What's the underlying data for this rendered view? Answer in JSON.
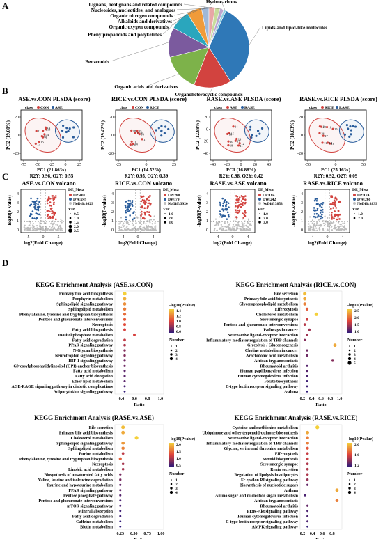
{
  "panels": {
    "A": "A",
    "B": "B",
    "C": "C",
    "D": "D"
  },
  "pie": {
    "type": "pie",
    "slices": [
      {
        "label": "Lipids and lipid-like molecules",
        "value": 34,
        "color": "#2f78b7"
      },
      {
        "label": "Organoheterocyclic compounds",
        "value": 15,
        "color": "#d2433f"
      },
      {
        "label": "Organic acids and derivatives",
        "value": 15,
        "color": "#7db24a"
      },
      {
        "label": "Benzenoids",
        "value": 12,
        "color": "#7b5a9e"
      },
      {
        "label": "Phenylpropanoids and polyketides",
        "value": 8,
        "color": "#2aa6bd"
      },
      {
        "label": "Organic oxygen compounds",
        "value": 6,
        "color": "#f09b3a"
      },
      {
        "label": "Alkaloids and derivatives",
        "value": 3,
        "color": "#9fb8d8"
      },
      {
        "label": "Organic nitrogen compounds",
        "value": 2.5,
        "color": "#e8a6a6"
      },
      {
        "label": "Nucleosides, nucleotides, and analogues",
        "value": 2,
        "color": "#c7dc9c"
      },
      {
        "label": "Lignans, neolignans and related compounds",
        "value": 1.5,
        "color": "#bba6d0"
      },
      {
        "label": "Hydrocarbons",
        "value": 1,
        "color": "#8fd0e0"
      }
    ]
  },
  "plsda": [
    {
      "title": "ASE.vs.CON PLSDA (score)",
      "xlabel": "PC1 (21.86%)",
      "ylabel": "PC2 (19.60%)",
      "footer": "R2Y: 0.96, Q2Y: 0.55",
      "legend": [
        "class",
        "CON",
        "ASE"
      ],
      "xticks": [
        "-75",
        "-50",
        "-25",
        "0",
        "25"
      ],
      "yticks": [
        "20",
        "0",
        "-20"
      ]
    },
    {
      "title": "RICE.vs.CON PLSDA (score)",
      "xlabel": "PC1 (14.52%)",
      "ylabel": "PC2 (19.42%)",
      "footer": "R2Y: 0.95, Q2Y: 0.39",
      "legend": [
        "class",
        "CON",
        "RICE"
      ],
      "xticks": [
        "-25",
        "0",
        "25"
      ],
      "yticks": [
        "20",
        "0",
        "-20"
      ]
    },
    {
      "title": "RASE.vs.ASE PLSDA (score)",
      "xlabel": "PC1 (16.88%)",
      "ylabel": "PC2 (12.98%)",
      "footer": "R2Y: 0.98, Q2Y: 0.42",
      "legend": [
        "class",
        "ASE",
        "RASE"
      ],
      "xticks": [
        "-40",
        "-20",
        "0",
        "20",
        "40"
      ],
      "yticks": [
        "20",
        "0",
        "-20",
        "-40"
      ]
    },
    {
      "title": "RASE.vs.RICE PLSDA (score)",
      "xlabel": "PC1 (25.16%)",
      "ylabel": "PC2 (18.63%)",
      "footer": "R2Y: 0.92, Q2Y: 0.09",
      "legend": [
        "class",
        "RICE",
        "RASE"
      ],
      "xticks": [
        "-50",
        "0",
        "50"
      ],
      "yticks": [
        "20",
        "0",
        "-20"
      ]
    }
  ],
  "volcano": [
    {
      "title": "ASE.vs.CON volcano",
      "legend_title": "DE_Meta",
      "up": "UP:401",
      "down": "DW:249",
      "nodiff": "NoDiff:3629",
      "vip": [
        "0.5",
        "1.0",
        "1.5",
        "2.0",
        "2.5"
      ],
      "xticks": [
        "-5",
        "0",
        "5"
      ],
      "yticks": [
        "0",
        "1",
        "2",
        "3",
        "4"
      ]
    },
    {
      "title": "RICE.vs.CON volcano",
      "legend_title": "DE_Meta",
      "up": "UP:280",
      "down": "DW:79",
      "nodiff": "NoDiff:3920",
      "vip": [
        "1.0",
        "2.0",
        "3.0"
      ],
      "xticks": [
        "-4",
        "0",
        "4"
      ],
      "yticks": [
        "0",
        "1",
        "2",
        "3",
        "4"
      ]
    },
    {
      "title": "RASE.vs.ASE volcano",
      "legend_title": "DE_Meta",
      "up": "UP:184",
      "down": "DW:242",
      "nodiff": "NoDiff:3853",
      "vip": [
        "1.0",
        "2.0",
        "3.0"
      ],
      "xticks": [
        "-4",
        "0",
        "4"
      ],
      "yticks": [
        "0",
        "1",
        "2",
        "3",
        "4"
      ]
    },
    {
      "title": "RASE.vs.RICE volcano",
      "legend_title": "DE_Meta",
      "up": "UP:174",
      "down": "DW:266",
      "nodiff": "NoDiff:3839",
      "vip": [
        "1.0",
        "2.0"
      ],
      "xticks": [
        "-4",
        "0",
        "4"
      ],
      "yticks": [
        "0",
        "1",
        "2",
        "3",
        "4"
      ]
    }
  ],
  "volcano_axes": {
    "xlabel": "log2(Fold Change)",
    "ylabel": "-log10(P-value)",
    "vip_label": "VIP"
  },
  "kegg": [
    {
      "title": "KEGG Enrichment Analysis (ASE.vs.CON)",
      "pathways": [
        "Primary bile acid biosynthesis",
        "Porphyrin metabolism",
        "Sphingolipid signaling pathway",
        "Sphingolipid metabolism",
        "Phenylalanine, tyrosine and tryptophan biosynthesis",
        "Pentose and glucuronate interconversions",
        "Necroptosis",
        "Fatty acid biosynthesis",
        "Inositol phosphate metabolism",
        "Fatty acid degradation",
        "PPAR signaling pathway",
        "N-Glycan biosynthesis",
        "Neurotrophin signaling pathway",
        "HIF-1 signaling pathway",
        "Glycosylphosphatidylinositol (GPI)-anchor biosynthesis",
        "Fatty acid metabolism",
        "Fatty acid elongation",
        "Ether lipid metabolism",
        "AGE-RAGE signaling pathway in diabetic complications",
        "Adipocytokine signaling pathway"
      ],
      "ratio": [
        0.45,
        0.45,
        0.45,
        0.45,
        0.45,
        0.45,
        0.45,
        0.45,
        0.6,
        0.45,
        0.45,
        0.45,
        0.45,
        0.45,
        0.45,
        0.45,
        0.45,
        0.45,
        0.45,
        0.45
      ],
      "pval": [
        1.35,
        1.25,
        1.15,
        1.1,
        1.05,
        1.0,
        0.95,
        0.9,
        0.9,
        0.85,
        0.8,
        0.7,
        0.7,
        0.65,
        0.65,
        0.6,
        0.6,
        0.6,
        0.55,
        0.5
      ],
      "xticks": [
        "0.4",
        "0.6",
        "0.8",
        "1.0"
      ],
      "xlim": [
        0.3,
        1.05
      ],
      "color_ticks": [
        "1.4",
        "1.2",
        "1.0",
        "0.8",
        "0.6"
      ],
      "number_ticks": [
        "1",
        "2",
        "3",
        "4"
      ]
    },
    {
      "title": "KEGG Enrichment Analysis (RICE.vs.CON)",
      "pathways": [
        "Bile secretion",
        "Primary bile acid biosynthesis",
        "Glycerophospholipid metabolism",
        "Efferocytosis",
        "Cholesterol metabolism",
        "Serotonergic synapse",
        "Pentose and glucuronate interconversions",
        "Pathways in cancer",
        "Neuroactive ligand-receptor interaction",
        "Inflammatory mediator regulation of TRP channels",
        "Glycolysis / Gluconeogenesis",
        "Choline metabolism in cancer",
        "Arachidonic acid metabolism",
        "African trypanosomiasis",
        "Rheumatoid arthritis",
        "Human papillomavirus infection",
        "Human cytomegalovirus infection",
        "Folate biosynthesis",
        "C-type lectin receptor signaling pathway",
        "Asthma"
      ],
      "ratio": [
        0.25,
        0.25,
        0.25,
        0.3,
        0.5,
        0.3,
        0.25,
        0.35,
        0.3,
        0.25,
        0.9,
        0.3,
        0.3,
        0.85,
        0.3,
        0.3,
        0.3,
        0.3,
        0.3,
        0.3
      ],
      "pval": [
        2.3,
        2.2,
        2.0,
        1.8,
        2.4,
        1.6,
        1.5,
        1.4,
        1.4,
        1.3,
        2.2,
        1.2,
        1.2,
        1.3,
        1.1,
        1.1,
        1.05,
        1.0,
        1.0,
        0.95
      ],
      "xticks": [
        "0.2",
        "0.4",
        "0.6",
        "0.8",
        "1.0"
      ],
      "xlim": [
        0.15,
        1.05
      ],
      "color_ticks": [
        "2.5",
        "2.0",
        "1.5",
        "1.0"
      ],
      "number_ticks": [
        "1",
        "2",
        "3",
        "4",
        "5"
      ]
    },
    {
      "title": "KEGG Enrichment Analysis (RASE.vs.ASE)",
      "pathways": [
        "Bile secretion",
        "Primary bile acid biosynthesis",
        "Cholesterol metabolism",
        "Sphingolipid signaling pathway",
        "Sphingolipid metabolism",
        "Purine metabolism",
        "Phenylalanine, tyrosine and tryptophan biosynthesis",
        "Necroptosis",
        "Linoleic acid metabolism",
        "Biosynthesis of unsaturated fatty acids",
        "Valine, leucine and isoleucine degradation",
        "Taurine and hypotaurine metabolism",
        "PPAR signaling pathway",
        "Pentose phosphate pathway",
        "Pentose and glucuronate interconversions",
        "mTOR signaling pathway",
        "Mineral absorption",
        "Fatty acid degradation",
        "Caffeine metabolism",
        "Biotin metabolism"
      ],
      "ratio": [
        0.3,
        0.3,
        0.55,
        0.3,
        0.3,
        0.3,
        0.25,
        0.3,
        0.3,
        0.25,
        0.25,
        0.25,
        0.25,
        0.25,
        0.25,
        0.25,
        0.25,
        0.25,
        0.25,
        0.25
      ],
      "pval": [
        2.1,
        2.0,
        2.2,
        1.9,
        1.8,
        1.3,
        1.6,
        1.2,
        1.2,
        1.0,
        1.0,
        0.9,
        0.9,
        0.85,
        0.8,
        0.8,
        0.75,
        0.75,
        0.7,
        0.7
      ],
      "xticks": [
        "0.25",
        "0.50",
        "0.75",
        "1.00"
      ],
      "xlim": [
        0.15,
        1.05
      ],
      "color_ticks": [
        "2.0",
        "1.5",
        "1.0",
        "0.5"
      ],
      "number_ticks": [
        "1",
        "2",
        "3",
        "4"
      ]
    },
    {
      "title": "KEGG Enrichment Analysis (RASE.vs.RICE)",
      "pathways": [
        "Cysteine and methionine metabolism",
        "Ubiquinone and other terpenoid-quinone biosynthesis",
        "Neuroactive ligand-receptor interaction",
        "Inflammatory mediator regulation of TRP channels",
        "Glycine, serine and threonine metabolism",
        "Efferocytosis",
        "Steroid biosynthesis",
        "Serotonergic synapse",
        "Renin secretion",
        "Regulation of lipolysis in adipocytes",
        "Fc epsilon RI signaling pathway",
        "Biosynthesis of nucleotide sugars",
        "Asthma",
        "Amino sugar and nucleotide sugar metabolism",
        "African trypanosomiasis",
        "Rheumatoid arthritis",
        "PI3K-Akt signaling pathway",
        "Human cytomegalovirus infection",
        "C-type lectin receptor signaling pathway",
        "AMPK signaling pathway"
      ],
      "ratio": [
        0.5,
        0.3,
        0.3,
        0.3,
        0.3,
        0.3,
        0.3,
        0.3,
        0.3,
        0.3,
        0.3,
        0.3,
        0.9,
        0.25,
        0.9,
        0.3,
        0.3,
        0.3,
        0.3,
        0.3
      ],
      "pval": [
        2.2,
        2.0,
        1.8,
        1.8,
        1.6,
        1.4,
        1.4,
        1.3,
        1.3,
        1.3,
        1.2,
        1.0,
        2.0,
        0.9,
        1.8,
        1.0,
        0.9,
        0.9,
        0.9,
        0.8
      ],
      "xticks": [
        "0.2",
        "0.4",
        "0.6",
        "0.8"
      ],
      "xlim": [
        0.15,
        1.0
      ],
      "color_ticks": [
        "2.0",
        "1.6",
        "1.2"
      ],
      "number_ticks": [
        "1",
        "2",
        "3",
        "4"
      ]
    }
  ],
  "kegg_axes": {
    "xlabel": "Ratio",
    "color_label": "-log10(Pvalue)",
    "size_label": "Number"
  },
  "chart_data": [
    {
      "type": "pie",
      "title": "",
      "categories": [
        "Lipids and lipid-like molecules",
        "Organoheterocyclic compounds",
        "Organic acids and derivatives",
        "Benzenoids",
        "Phenylpropanoids and polyketides",
        "Organic oxygen compounds",
        "Alkaloids and derivatives",
        "Organic nitrogen compounds",
        "Nucleosides, nucleotides, and analogues",
        "Lignans, neolignans and related compounds",
        "Hydrocarbons"
      ],
      "values": [
        34,
        15,
        15,
        12,
        8,
        6,
        3,
        2.5,
        2,
        1.5,
        1
      ]
    },
    {
      "type": "scatter",
      "title": "ASE.vs.CON PLSDA (score)",
      "xlabel": "PC1 (21.86%)",
      "ylabel": "PC2 (19.60%)"
    },
    {
      "type": "scatter",
      "title": "RICE.vs.CON PLSDA (score)",
      "xlabel": "PC1 (14.52%)",
      "ylabel": "PC2 (19.42%)"
    },
    {
      "type": "scatter",
      "title": "RASE.vs.ASE PLSDA (score)",
      "xlabel": "PC1 (16.88%)",
      "ylabel": "PC2 (12.98%)"
    },
    {
      "type": "scatter",
      "title": "RASE.vs.RICE PLSDA (score)",
      "xlabel": "PC1 (25.16%)",
      "ylabel": "PC2 (18.63%)"
    },
    {
      "type": "scatter",
      "title": "ASE.vs.CON volcano",
      "xlabel": "log2(Fold Change)",
      "ylabel": "-log10(P-value)",
      "series": [
        {
          "name": "UP:401"
        },
        {
          "name": "DW:249"
        },
        {
          "name": "NoDiff:3629"
        }
      ]
    },
    {
      "type": "scatter",
      "title": "RICE.vs.CON volcano",
      "xlabel": "log2(Fold Change)",
      "ylabel": "-log10(P-value)",
      "series": [
        {
          "name": "UP:280"
        },
        {
          "name": "DW:79"
        },
        {
          "name": "NoDiff:3920"
        }
      ]
    },
    {
      "type": "scatter",
      "title": "RASE.vs.ASE volcano",
      "xlabel": "log2(Fold Change)",
      "ylabel": "-log10(P-value)",
      "series": [
        {
          "name": "UP:184"
        },
        {
          "name": "DW:242"
        },
        {
          "name": "NoDiff:3853"
        }
      ]
    },
    {
      "type": "scatter",
      "title": "RASE.vs.RICE volcano",
      "xlabel": "log2(Fold Change)",
      "ylabel": "-log10(P-value)",
      "series": [
        {
          "name": "UP:174"
        },
        {
          "name": "DW:266"
        },
        {
          "name": "NoDiff:3839"
        }
      ]
    }
  ]
}
